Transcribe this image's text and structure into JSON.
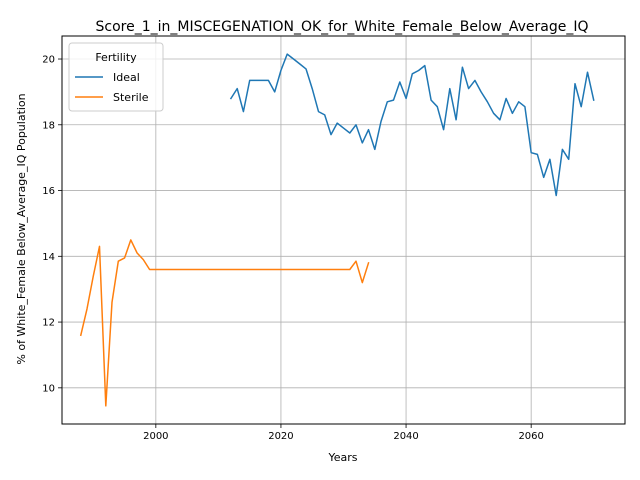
{
  "chart_data": {
    "type": "line",
    "title": "Score_1_in_MISCEGENATION_OK_for_White_Female_Below_Average_IQ",
    "xlabel": "Years",
    "ylabel": "% of White_Female Below_Average_IQ Population",
    "xlim": [
      1985,
      2075
    ],
    "ylim": [
      8.9,
      20.7
    ],
    "xticks": [
      2000,
      2020,
      2040,
      2060
    ],
    "yticks": [
      10,
      12,
      14,
      16,
      18,
      20
    ],
    "grid": true,
    "legend": {
      "title": "Fertility",
      "placement": "top-left"
    },
    "series": [
      {
        "name": "Ideal",
        "color": "#1f77b4",
        "x": [
          2012,
          2013,
          2014,
          2015,
          2016,
          2017,
          2018,
          2019,
          2020,
          2021,
          2022,
          2023,
          2024,
          2025,
          2026,
          2027,
          2028,
          2029,
          2030,
          2031,
          2032,
          2033,
          2034,
          2035,
          2036,
          2037,
          2038,
          2039,
          2040,
          2041,
          2042,
          2043,
          2044,
          2045,
          2046,
          2047,
          2048,
          2049,
          2050,
          2051,
          2052,
          2053,
          2054,
          2055,
          2056,
          2057,
          2058,
          2059,
          2060,
          2061,
          2062,
          2063,
          2064,
          2065,
          2066,
          2067,
          2068,
          2069,
          2070
        ],
        "y": [
          18.8,
          19.1,
          18.4,
          19.35,
          19.35,
          19.35,
          19.35,
          19.0,
          19.65,
          20.15,
          20.0,
          19.85,
          19.7,
          19.1,
          18.4,
          18.3,
          17.7,
          18.05,
          17.9,
          17.75,
          18.0,
          17.45,
          17.85,
          17.25,
          18.1,
          18.7,
          18.75,
          19.3,
          18.8,
          19.55,
          19.65,
          19.8,
          18.75,
          18.55,
          17.85,
          19.1,
          18.15,
          19.75,
          19.1,
          19.35,
          19.0,
          18.7,
          18.35,
          18.15,
          18.8,
          18.35,
          18.7,
          18.55,
          17.15,
          17.1,
          16.4,
          16.95,
          15.85,
          17.25,
          16.95,
          19.25,
          18.55,
          19.6,
          18.75
        ]
      },
      {
        "name": "Sterile",
        "color": "#ff7f0e",
        "x": [
          1988,
          1989,
          1990,
          1991,
          1992,
          1993,
          1994,
          1995,
          1996,
          1997,
          1998,
          1999,
          2000,
          2005,
          2010,
          2015,
          2020,
          2025,
          2030,
          2031,
          2032,
          2033,
          2034
        ],
        "y": [
          11.6,
          12.4,
          13.4,
          14.3,
          9.45,
          12.6,
          13.85,
          13.95,
          14.5,
          14.1,
          13.9,
          13.6,
          13.6,
          13.6,
          13.6,
          13.6,
          13.6,
          13.6,
          13.6,
          13.6,
          13.85,
          13.2,
          13.8
        ]
      }
    ]
  }
}
